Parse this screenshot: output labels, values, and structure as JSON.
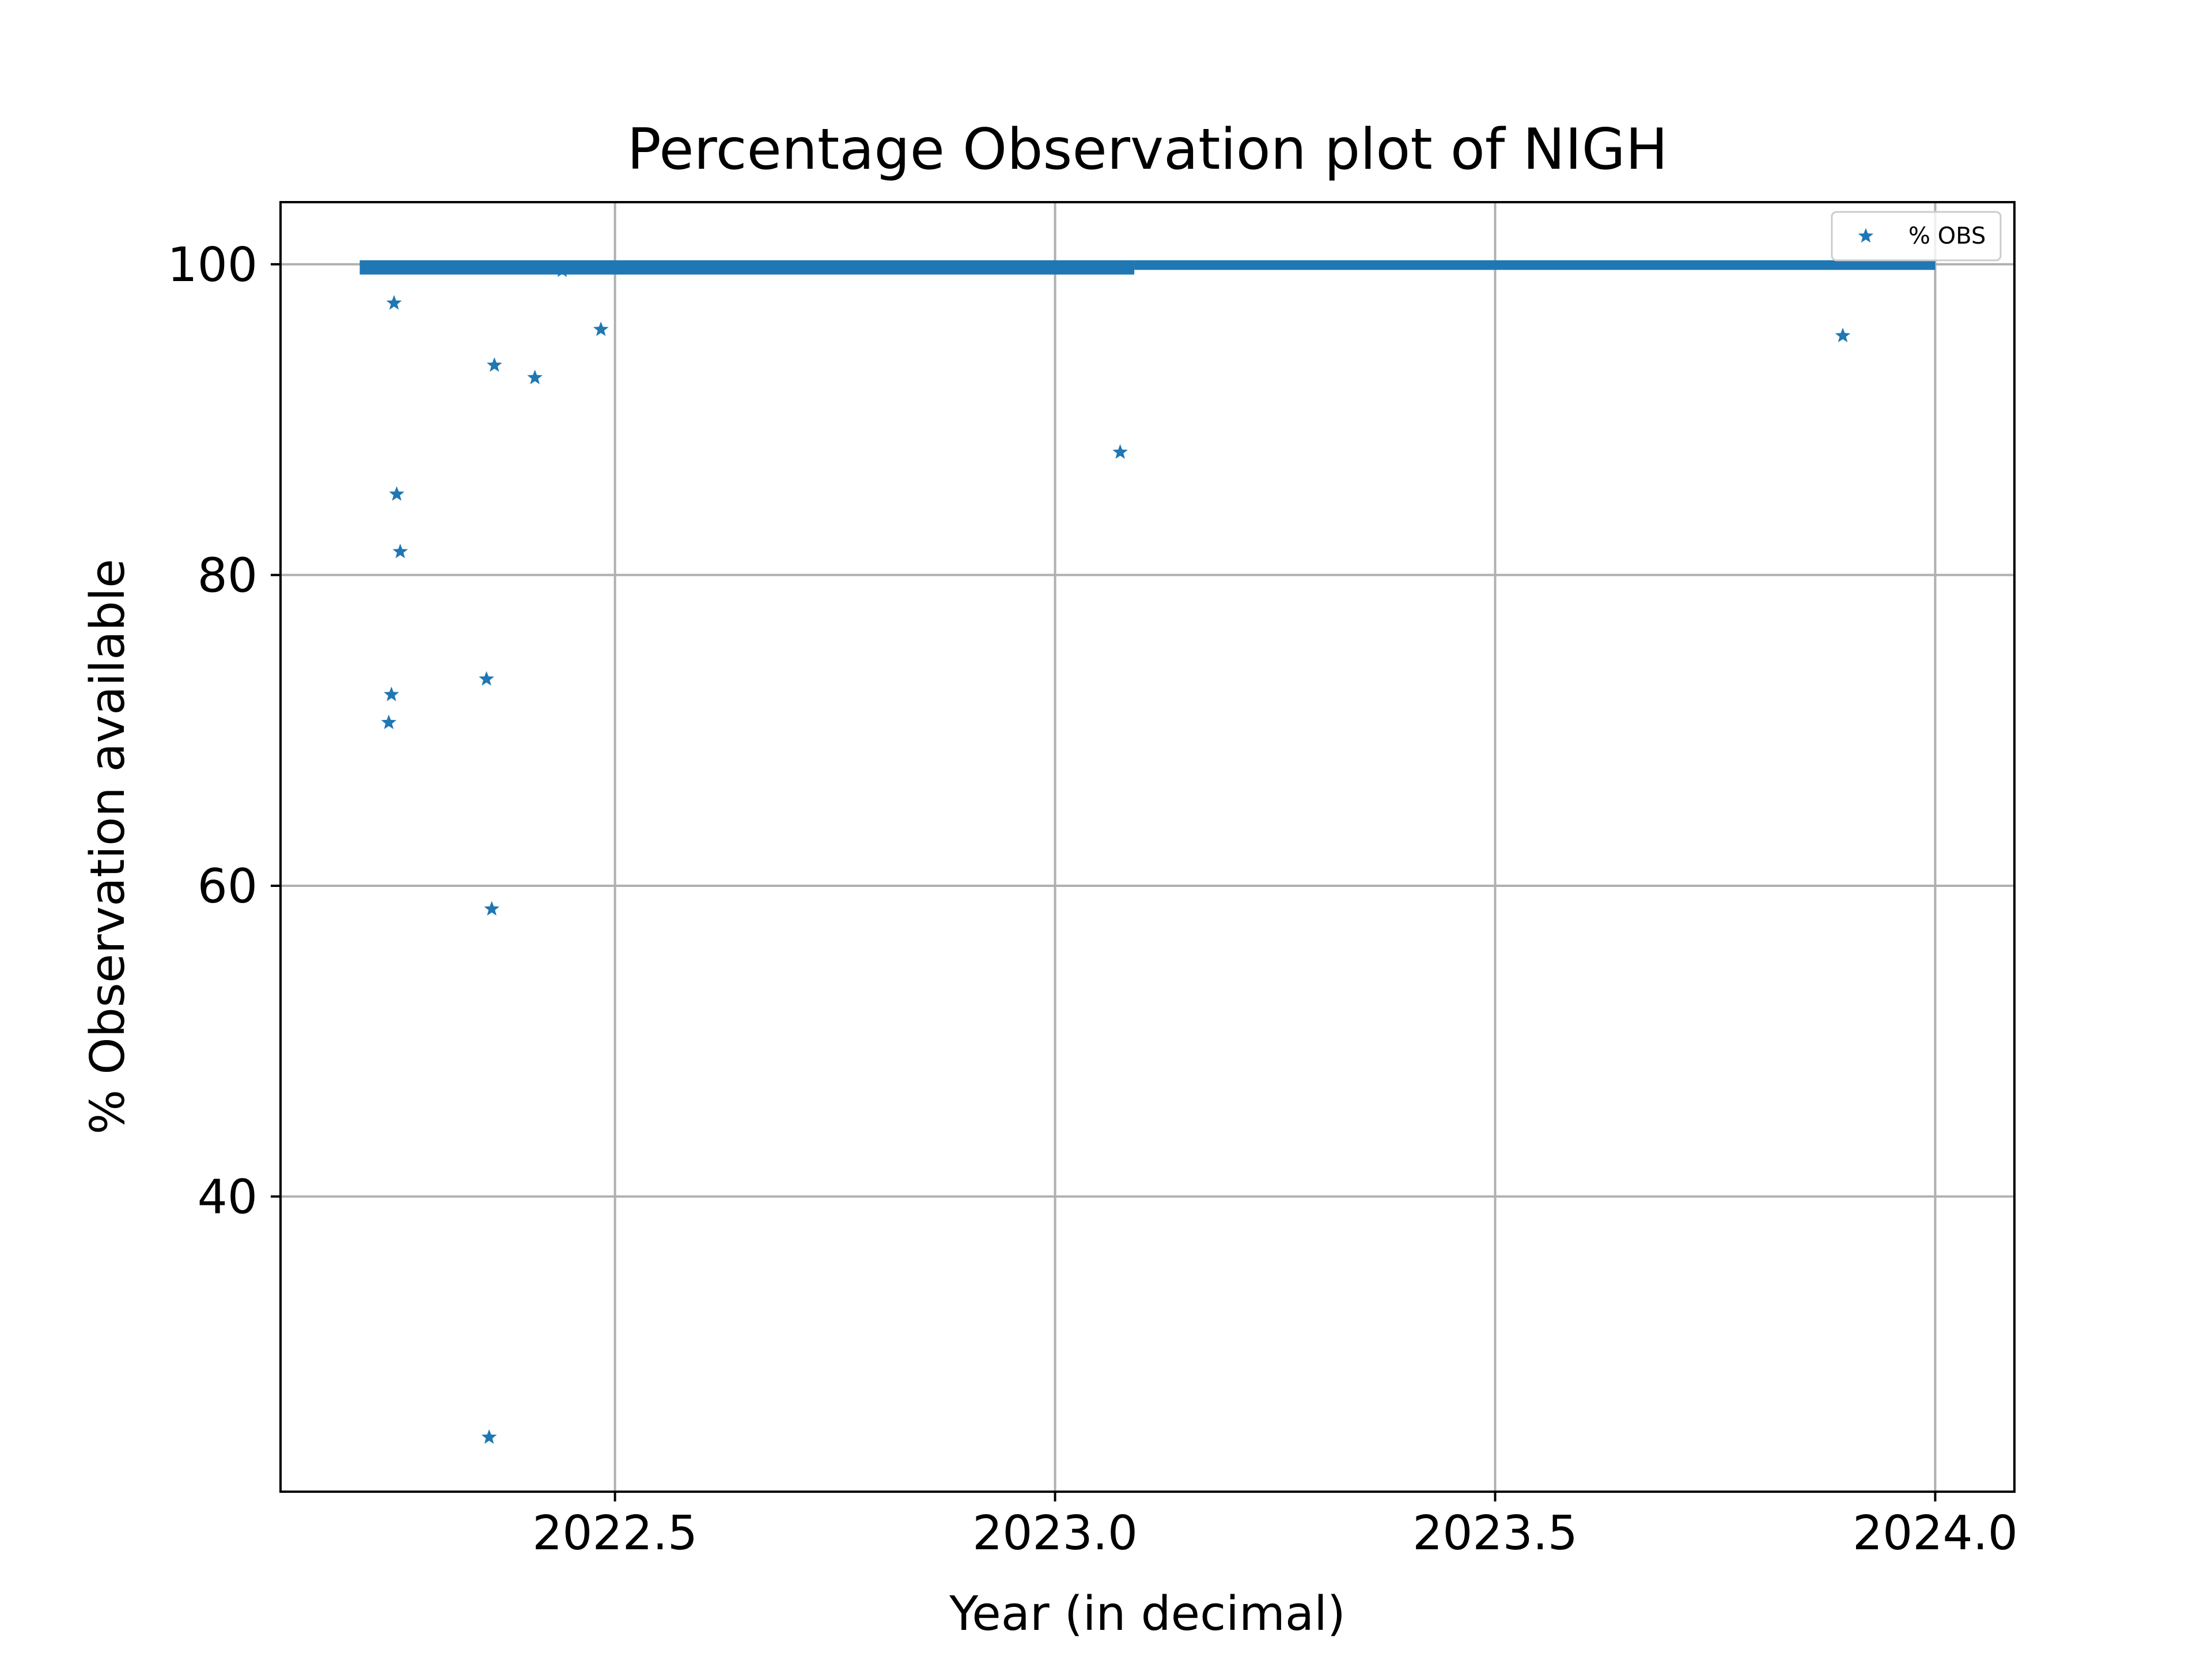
{
  "chart_data": {
    "type": "scatter",
    "title": "Percentage Observation plot of NIGH",
    "xlabel": "Year (in decimal)",
    "ylabel": "% Observation available",
    "xlim": [
      2022.12,
      2024.09
    ],
    "ylim": [
      21,
      104
    ],
    "x_ticks": [
      2022.5,
      2023.0,
      2023.5,
      2024.0
    ],
    "x_tick_labels": [
      "2022.5",
      "2023.0",
      "2023.5",
      "2024.0"
    ],
    "y_ticks": [
      40,
      60,
      80,
      100
    ],
    "y_tick_labels": [
      "40",
      "60",
      "80",
      "100"
    ],
    "grid": true,
    "legend_position": "upper right",
    "marker": "star",
    "series": [
      {
        "name": "% OBS",
        "color": "#1f77b4",
        "dense_band": [
          {
            "x_start": 2022.21,
            "x_end": 2023.09,
            "y_min": 99.6,
            "y_max": 100
          },
          {
            "x_start": 2023.09,
            "x_end": 2024.0,
            "y_min": 99.9,
            "y_max": 100
          }
        ],
        "outliers": [
          {
            "x": 2022.243,
            "y": 70.5
          },
          {
            "x": 2022.246,
            "y": 72.3
          },
          {
            "x": 2022.249,
            "y": 97.5
          },
          {
            "x": 2022.252,
            "y": 85.2
          },
          {
            "x": 2022.256,
            "y": 81.5
          },
          {
            "x": 2022.354,
            "y": 73.3
          },
          {
            "x": 2022.357,
            "y": 24.5
          },
          {
            "x": 2022.36,
            "y": 58.5
          },
          {
            "x": 2022.363,
            "y": 93.5
          },
          {
            "x": 2022.409,
            "y": 92.7
          },
          {
            "x": 2022.44,
            "y": 99.6
          },
          {
            "x": 2022.484,
            "y": 95.8
          },
          {
            "x": 2023.074,
            "y": 87.9
          },
          {
            "x": 2023.895,
            "y": 95.4
          }
        ]
      }
    ]
  }
}
